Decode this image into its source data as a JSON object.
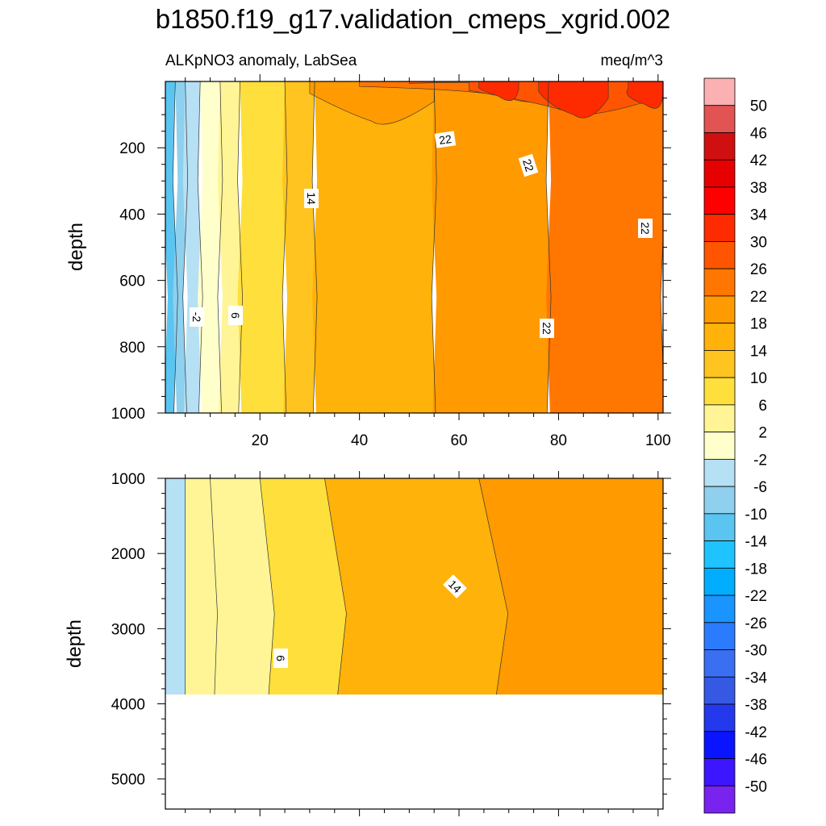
{
  "chart_data": {
    "type": "heatmap",
    "title": "b1850.f19_g17.validation_cmeps_xgrid.002",
    "subtitle_left": "ALKpNO3 anomaly, LabSea",
    "subtitle_right": "meq/m^3",
    "colorbar": {
      "levels": [
        "50",
        "46",
        "42",
        "38",
        "34",
        "30",
        "26",
        "22",
        "18",
        "14",
        "10",
        "6",
        "2",
        "-2",
        "-6",
        "-10",
        "-14",
        "-18",
        "-22",
        "-26",
        "-30",
        "-34",
        "-38",
        "-42",
        "-46",
        "-50"
      ],
      "colors": [
        "#fbb1b1",
        "#e25353",
        "#d01010",
        "#e60000",
        "#ff0000",
        "#ff2b00",
        "#ff5500",
        "#ff7700",
        "#ff9a00",
        "#ffb20a",
        "#ffc41f",
        "#ffdf3c",
        "#fff596",
        "#ffffcc",
        "#b6e0f4",
        "#8ed0ee",
        "#5ac5f0",
        "#1ec3ff",
        "#00adff",
        "#1a94ff",
        "#2b7bff",
        "#3a6ff2",
        "#3659e3",
        "#2438ee",
        "#0a14ff",
        "#3c16ff",
        "#7a22ee"
      ]
    },
    "panels": [
      {
        "name": "upper",
        "ylabel": "depth",
        "xlim": [
          1,
          101
        ],
        "ylim": [
          0,
          1000
        ],
        "x_ticks": [
          "20",
          "40",
          "60",
          "80",
          "100"
        ],
        "y_ticks": [
          "200",
          "400",
          "600",
          "800",
          "1000"
        ],
        "contour_labels": [
          "22",
          "22",
          "14",
          "22",
          "-2",
          "6",
          "22"
        ],
        "bands": [
          {
            "x_from": 1,
            "x_to": 3,
            "value": -14
          },
          {
            "x_from": 3,
            "x_to": 5,
            "value": -10
          },
          {
            "x_from": 5,
            "x_to": 8,
            "value": -6
          },
          {
            "x_from": 8,
            "x_to": 12,
            "value": -2
          },
          {
            "x_from": 12,
            "x_to": 16,
            "value": 2
          },
          {
            "x_from": 16,
            "x_to": 25,
            "value": 6
          },
          {
            "x_from": 25,
            "x_to": 31,
            "value": 10
          },
          {
            "x_from": 31,
            "x_to": 55,
            "value": 14
          },
          {
            "x_from": 55,
            "x_to": 78,
            "value": 18
          },
          {
            "x_from": 78,
            "x_to": 101,
            "value": 22
          }
        ],
        "surface_bands": [
          {
            "x_from": 30,
            "x_to": 55,
            "depth_to": 120,
            "value": 18
          },
          {
            "x_from": 40,
            "x_to": 101,
            "depth_to": 50,
            "value": 22
          },
          {
            "x_from": 50,
            "x_to": 101,
            "depth_to": 20,
            "value": 26
          },
          {
            "x_from": 62,
            "x_to": 101,
            "depth_to": 90,
            "value": 26
          },
          {
            "x_from": 64,
            "x_to": 72,
            "depth_to": 45,
            "value": 30
          },
          {
            "x_from": 76,
            "x_to": 90,
            "depth_to": 100,
            "value": 30
          },
          {
            "x_from": 94,
            "x_to": 101,
            "depth_to": 70,
            "value": 30
          }
        ]
      },
      {
        "name": "lower",
        "ylabel": "depth",
        "xlim": [
          1,
          101
        ],
        "ylim": [
          1000,
          5400
        ],
        "y_ticks": [
          "1000",
          "2000",
          "3000",
          "4000",
          "5000"
        ],
        "max_depth_data": 3880,
        "contour_labels": [
          "14",
          "6"
        ],
        "bands": [
          {
            "x_from": 1,
            "x_to": 5,
            "value": -6
          },
          {
            "x_from": 5,
            "x_to": 10,
            "value": 2
          },
          {
            "x_from": 10,
            "x_to": 20,
            "value": 2
          },
          {
            "x_from": 20,
            "x_to": 33,
            "value": 6
          },
          {
            "x_from": 33,
            "x_to": 64,
            "value": 14
          },
          {
            "x_from": 64,
            "x_to": 101,
            "value": 18
          }
        ]
      }
    ]
  }
}
